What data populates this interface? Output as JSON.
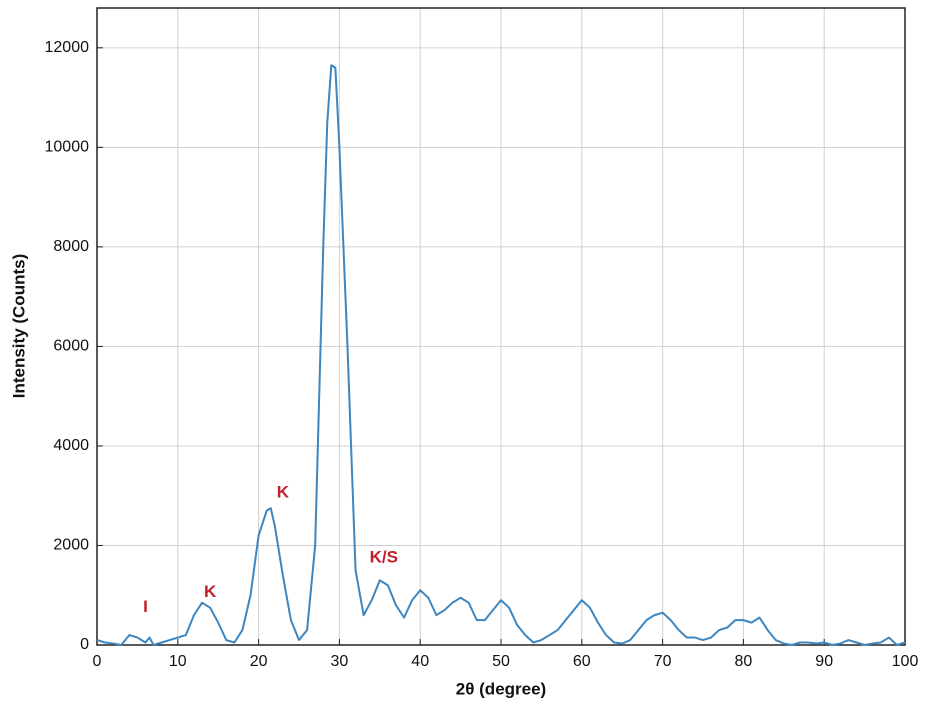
{
  "chart_data": {
    "type": "line",
    "x_label": "2θ (degree)",
    "y_label": "Intensity (Counts)",
    "color": "#3d86c0",
    "x": [
      0,
      1,
      2,
      3,
      4,
      5,
      6,
      6.5,
      7,
      8,
      9,
      10,
      11,
      12,
      13,
      14,
      15,
      16,
      17,
      18,
      19,
      20,
      21,
      21.5,
      22,
      23,
      24,
      25,
      26,
      27,
      28,
      28.5,
      29,
      29.5,
      30,
      31,
      32,
      33,
      34,
      35,
      36,
      37,
      38,
      39,
      40,
      41,
      42,
      43,
      44,
      45,
      46,
      47,
      48,
      49,
      50,
      51,
      52,
      53,
      54,
      55,
      56,
      57,
      58,
      59,
      60,
      61,
      62,
      63,
      64,
      65,
      66,
      67,
      68,
      69,
      70,
      71,
      72,
      73,
      74,
      75,
      76,
      77,
      78,
      79,
      80,
      81,
      82,
      83,
      84,
      85,
      86,
      87,
      88,
      89,
      90,
      91,
      92,
      93,
      94,
      95,
      96,
      97,
      98,
      99,
      100
    ],
    "values": [
      100,
      50,
      30,
      0,
      200,
      150,
      50,
      150,
      0,
      50,
      100,
      150,
      200,
      600,
      850,
      750,
      450,
      100,
      50,
      300,
      1000,
      2200,
      2700,
      2750,
      2400,
      1400,
      500,
      100,
      300,
      2000,
      8000,
      10500,
      11650,
      11600,
      10000,
      6000,
      1500,
      600,
      900,
      1300,
      1200,
      800,
      550,
      900,
      1100,
      950,
      600,
      700,
      850,
      950,
      850,
      500,
      500,
      700,
      900,
      750,
      400,
      200,
      50,
      100,
      200,
      300,
      500,
      700,
      900,
      750,
      450,
      200,
      50,
      30,
      100,
      300,
      500,
      600,
      650,
      500,
      300,
      150,
      150,
      100,
      150,
      300,
      350,
      500,
      500,
      450,
      550,
      300,
      100,
      30,
      0,
      50,
      50,
      30,
      50,
      0,
      30,
      100,
      50,
      0,
      30,
      50,
      150,
      0,
      50
    ],
    "xlim": [
      0,
      100
    ],
    "xticks": [
      0,
      10,
      20,
      30,
      40,
      50,
      60,
      70,
      80,
      90,
      100
    ],
    "ylim": [
      0,
      12800
    ],
    "yticks": [
      0,
      2000,
      4000,
      6000,
      8000,
      10000,
      12000
    ],
    "grid": true,
    "annotations": [
      {
        "text": "I",
        "x": 6,
        "y": 750,
        "color": "#c0202a"
      },
      {
        "text": "K",
        "x": 14,
        "y": 1050,
        "color": "#c0202a"
      },
      {
        "text": "K",
        "x": 23,
        "y": 3050,
        "color": "#c0202a"
      },
      {
        "text": "K/S",
        "x": 35.5,
        "y": 1750,
        "color": "#c0202a"
      }
    ]
  }
}
